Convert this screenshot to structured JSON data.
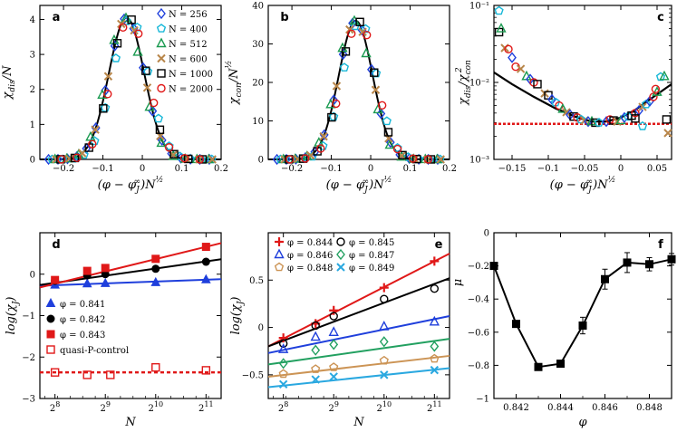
{
  "colors": {
    "blue": "#1f3fdc",
    "cyan": "#18b8d8",
    "green": "#1a9a50",
    "brown": "#b8864a",
    "black": "#000000",
    "red": "#e01818",
    "mint": "#22a060",
    "tan": "#cc9455",
    "sky": "#2aa8e0"
  },
  "chart_data": [
    {
      "panel": "a",
      "type": "scatter",
      "xlabel": "(φ − φ_J^∞)N^½",
      "ylabel": "χ_dis/N",
      "xlim": [
        -0.26,
        0.2
      ],
      "ylim": [
        0,
        4.4
      ],
      "xticks": [
        -0.2,
        -0.1,
        0,
        0.1,
        0.2
      ],
      "xtick_labels": [
        "−0.2",
        "−0.1",
        "0",
        "0.1",
        "0.2"
      ],
      "yticks": [
        0,
        1,
        2,
        3,
        4
      ],
      "ytick_labels": [
        "0",
        "1",
        "2",
        "3",
        "4"
      ],
      "legend": [
        "N = 256",
        "N = 400",
        "N = 512",
        "N = 600",
        "N = 1000",
        "N = 2000"
      ],
      "curve": {
        "amp": 4.05,
        "x0": -0.04,
        "sigma": 0.045
      }
    },
    {
      "panel": "b",
      "type": "scatter",
      "xlabel": "(φ − φ_J^∞)N^½",
      "ylabel": "χ_con/N^½",
      "xlim": [
        -0.26,
        0.2
      ],
      "ylim": [
        0,
        40
      ],
      "xticks": [
        -0.2,
        -0.1,
        0,
        0.1,
        0.2
      ],
      "xtick_labels": [
        "−0.2",
        "−0.1",
        "0",
        "0.1",
        "0.2"
      ],
      "yticks": [
        0,
        10,
        20,
        30,
        40
      ],
      "ytick_labels": [
        "0",
        "10",
        "20",
        "30",
        "40"
      ],
      "curve": {
        "amp": 36.0,
        "x0": -0.038,
        "sigma": 0.043
      }
    },
    {
      "panel": "c",
      "type": "scatter",
      "scale": "log",
      "xlabel": "(φ − φ_J^∞)N^½",
      "ylabel": "χ_dis/χ_con²",
      "xlim": [
        -0.175,
        0.07
      ],
      "ylim": [
        0.001,
        0.1
      ],
      "xticks": [
        -0.15,
        -0.1,
        -0.05,
        0,
        0.05
      ],
      "xtick_labels": [
        "−0.15",
        "−0.1",
        "−0.05",
        "0",
        "0.05"
      ],
      "yticks": [
        0.001,
        0.01,
        0.1
      ],
      "ytick_labels": [
        "10⁻³",
        "10⁻²",
        "10⁻¹"
      ],
      "hline": 0.0029,
      "vcurve": [
        [
          -0.175,
          0.0135
        ],
        [
          -0.15,
          0.0095
        ],
        [
          -0.12,
          0.0065
        ],
        [
          -0.09,
          0.0046
        ],
        [
          -0.06,
          0.0035
        ],
        [
          -0.04,
          0.0031
        ],
        [
          -0.02,
          0.0031
        ],
        [
          0.0,
          0.0035
        ],
        [
          0.02,
          0.0044
        ],
        [
          0.04,
          0.006
        ],
        [
          0.07,
          0.0095
        ]
      ]
    },
    {
      "panel": "d",
      "type": "line",
      "xlabel": "N",
      "ylabel": "log(χ_J)",
      "xlim_log2": [
        7.7,
        11.3
      ],
      "ylim": [
        -3,
        1
      ],
      "xtick_log2": [
        8,
        9,
        10,
        11
      ],
      "xtick_labels": [
        "2⁸",
        "2⁹",
        "2¹⁰",
        "2¹¹"
      ],
      "yticks": [
        -3,
        -2,
        -1,
        0
      ],
      "ytick_labels": [
        "−3",
        "−2",
        "−1",
        "0"
      ],
      "x_log2": [
        8,
        8.64,
        9,
        10,
        11
      ],
      "series": [
        {
          "name": "φ = 0.841",
          "values": [
            -0.26,
            -0.23,
            -0.22,
            -0.2,
            -0.13
          ]
        },
        {
          "name": "φ = 0.842",
          "values": [
            -0.16,
            -0.03,
            0.0,
            0.13,
            0.3
          ]
        },
        {
          "name": "φ = 0.843",
          "values": [
            -0.14,
            0.08,
            0.15,
            0.37,
            0.66
          ]
        },
        {
          "name": "quasi-P-control",
          "values": [
            -2.37,
            -2.43,
            -2.43,
            -2.25,
            -2.32
          ],
          "x_log2": [
            8,
            8.64,
            9.1,
            10,
            11
          ]
        }
      ],
      "quasi_line": -2.37
    },
    {
      "panel": "e",
      "type": "line",
      "xlabel": "N",
      "ylabel": "log(χ_J)",
      "xlim_log2": [
        7.7,
        11.3
      ],
      "ylim": [
        -0.75,
        1
      ],
      "xtick_log2": [
        8,
        9,
        10,
        11
      ],
      "xtick_labels": [
        "2⁸",
        "2⁹",
        "2¹⁰",
        "2¹¹"
      ],
      "yticks": [
        -0.5,
        0,
        0.5
      ],
      "ytick_labels": [
        "−0.5",
        "0",
        "0.5"
      ],
      "x_log2": [
        8,
        8.64,
        9,
        10,
        11
      ],
      "series": [
        {
          "name": "φ = 0.844",
          "values": [
            -0.11,
            0.04,
            0.18,
            0.42,
            0.7
          ]
        },
        {
          "name": "φ = 0.845",
          "values": [
            -0.17,
            0.02,
            0.12,
            0.3,
            0.41
          ]
        },
        {
          "name": "φ = 0.846",
          "values": [
            -0.23,
            -0.1,
            -0.05,
            0.01,
            0.06
          ]
        },
        {
          "name": "φ = 0.847",
          "values": [
            -0.38,
            -0.24,
            -0.18,
            -0.15,
            -0.2
          ]
        },
        {
          "name": "φ = 0.848",
          "values": [
            -0.49,
            -0.44,
            -0.42,
            -0.35,
            -0.33
          ]
        },
        {
          "name": "φ = 0.849",
          "values": [
            -0.6,
            -0.55,
            -0.52,
            -0.5,
            -0.45
          ]
        }
      ]
    },
    {
      "panel": "f",
      "type": "line",
      "xlabel": "φ",
      "ylabel": "μ",
      "xlim": [
        0.841,
        0.849
      ],
      "ylim": [
        -1,
        0
      ],
      "xticks": [
        0.842,
        0.844,
        0.846,
        0.848
      ],
      "xtick_labels": [
        "0.842",
        "0.844",
        "0.846",
        "0.848"
      ],
      "yticks": [
        -1,
        -0.8,
        -0.6,
        -0.4,
        -0.2,
        0
      ],
      "ytick_labels": [
        "−1",
        "−0.8",
        "−0.6",
        "−0.4",
        "−0.2",
        "0"
      ],
      "x": [
        0.841,
        0.842,
        0.843,
        0.844,
        0.845,
        0.846,
        0.847,
        0.848,
        0.849
      ],
      "values": [
        -0.2,
        -0.55,
        -0.81,
        -0.79,
        -0.56,
        -0.28,
        -0.18,
        -0.19,
        -0.16
      ],
      "errors": [
        0.01,
        0.015,
        0.015,
        0.015,
        0.05,
        0.06,
        0.06,
        0.04,
        0.035
      ]
    }
  ]
}
